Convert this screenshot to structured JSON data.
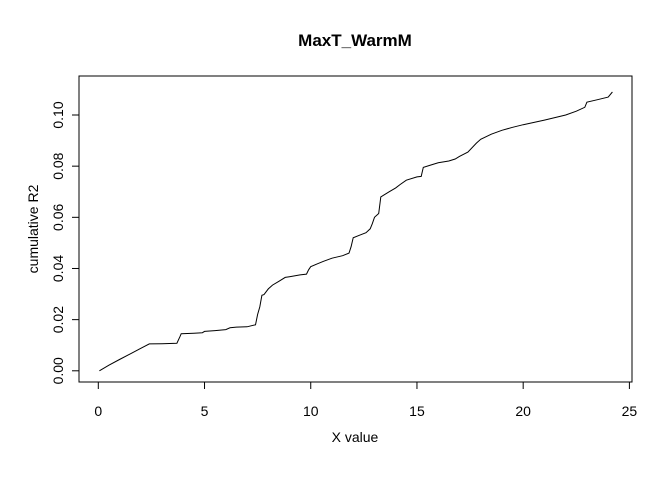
{
  "chart_data": {
    "type": "line",
    "title": "MaxT_WarmM",
    "xlabel": "X value",
    "ylabel": "cumulative R2",
    "xlim": [
      0,
      25
    ],
    "ylim": [
      0,
      0.11
    ],
    "xticks": [
      0,
      5,
      10,
      15,
      20,
      25
    ],
    "xtick_labels": [
      "0",
      "5",
      "10",
      "15",
      "20",
      "25"
    ],
    "yticks": [
      0,
      0.02,
      0.04,
      0.06,
      0.08,
      0.1
    ],
    "ytick_labels": [
      "0.00",
      "0.02",
      "0.04",
      "0.06",
      "0.08",
      "0.10"
    ],
    "grid": false,
    "series": [
      {
        "x": [
          0.05,
          0.5,
          1.0,
          1.5,
          2.0,
          2.4,
          3.0,
          3.7,
          3.85,
          3.9,
          4.5,
          4.9,
          5.0,
          5.5,
          6.0,
          6.2,
          6.5,
          7.0,
          7.4,
          7.5,
          7.6,
          7.7,
          7.8,
          8.0,
          8.2,
          8.5,
          8.8,
          9.0,
          9.5,
          9.8,
          9.9,
          10.0,
          10.3,
          10.6,
          11.0,
          11.5,
          11.8,
          11.9,
          12.0,
          12.3,
          12.6,
          12.8,
          12.9,
          13.0,
          13.2,
          13.3,
          13.4,
          13.7,
          14.0,
          14.2,
          14.5,
          15.0,
          15.2,
          15.3,
          15.6,
          16.0,
          16.5,
          16.8,
          17.0,
          17.4,
          17.8,
          18.0,
          18.5,
          19.0,
          19.5,
          20.0,
          21.0,
          22.0,
          22.5,
          22.9,
          23.0,
          23.5,
          24.0,
          24.2
        ],
        "y": [
          0.0,
          0.0022,
          0.0044,
          0.0066,
          0.0088,
          0.0105,
          0.0106,
          0.0108,
          0.0135,
          0.0145,
          0.0147,
          0.0149,
          0.0154,
          0.0157,
          0.0161,
          0.0168,
          0.0171,
          0.0172,
          0.018,
          0.022,
          0.025,
          0.0295,
          0.0298,
          0.032,
          0.0335,
          0.035,
          0.0365,
          0.0368,
          0.0375,
          0.0378,
          0.0395,
          0.0407,
          0.0418,
          0.0428,
          0.044,
          0.045,
          0.046,
          0.0485,
          0.052,
          0.053,
          0.054,
          0.0555,
          0.0575,
          0.06,
          0.0615,
          0.068,
          0.0685,
          0.07,
          0.0715,
          0.0728,
          0.0745,
          0.0758,
          0.076,
          0.0795,
          0.0803,
          0.0813,
          0.082,
          0.0828,
          0.0838,
          0.0855,
          0.089,
          0.0905,
          0.0925,
          0.094,
          0.0952,
          0.0962,
          0.098,
          0.1,
          0.1015,
          0.103,
          0.105,
          0.106,
          0.107,
          0.109
        ]
      }
    ]
  }
}
